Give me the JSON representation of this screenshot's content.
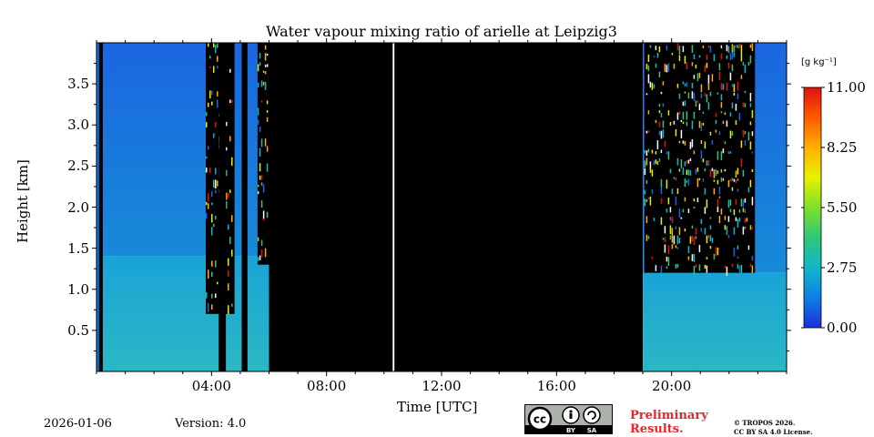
{
  "chart_data": {
    "type": "heatmap",
    "title": "Water vapour mixing ratio of arielle at Leipzig3",
    "xlabel": "Time [UTC]",
    "ylabel": "Height [km]",
    "xlim_hours": [
      0,
      24
    ],
    "ylim_km": [
      0,
      4.0
    ],
    "xticks": [
      {
        "hour": 4,
        "label": "04:00"
      },
      {
        "hour": 8,
        "label": "08:00"
      },
      {
        "hour": 12,
        "label": "12:00"
      },
      {
        "hour": 16,
        "label": "16:00"
      },
      {
        "hour": 20,
        "label": "20:00"
      }
    ],
    "yticks": [
      {
        "value": 0.5,
        "label": "0.5"
      },
      {
        "value": 1.0,
        "label": "1.0"
      },
      {
        "value": 1.5,
        "label": "1.5"
      },
      {
        "value": 2.0,
        "label": "2.0"
      },
      {
        "value": 2.5,
        "label": "2.5"
      },
      {
        "value": 3.0,
        "label": "3.0"
      },
      {
        "value": 3.5,
        "label": "3.5"
      }
    ],
    "colorbar": {
      "unit": "[g kg⁻¹]",
      "min": 0.0,
      "max": 11.0,
      "ticks": [
        {
          "value": 0.0,
          "label": "0.00"
        },
        {
          "value": 2.75,
          "label": "2.75"
        },
        {
          "value": 5.5,
          "label": "5.50"
        },
        {
          "value": 8.25,
          "label": "8.25"
        },
        {
          "value": 11.0,
          "label": "11.00"
        }
      ],
      "colors": [
        "#1a2fd8",
        "#0f7fe6",
        "#10b7c8",
        "#2fc77a",
        "#7fe02a",
        "#e8f000",
        "#ffb000",
        "#ff5a00",
        "#e01010"
      ]
    },
    "segments": [
      {
        "start": 0.0,
        "end": 0.1,
        "kind": "nodata"
      },
      {
        "start": 0.1,
        "end": 6.0,
        "kind": "valid",
        "boundary_layer_top_km": 1.4,
        "lower_value": 2.3,
        "upper_value": 1.0
      },
      {
        "start": 6.0,
        "end": 19.0,
        "kind": "nodata"
      },
      {
        "start": 19.0,
        "end": 24.0,
        "kind": "valid",
        "boundary_layer_top_km": 1.2,
        "lower_value": 2.0,
        "upper_value": 0.9
      }
    ],
    "gaps": [
      {
        "start": 0.1,
        "end": 0.22,
        "kind": "nodata"
      },
      {
        "start": 4.25,
        "end": 4.5,
        "kind": "nodata"
      },
      {
        "start": 5.05,
        "end": 5.25,
        "kind": "nodata"
      },
      {
        "start": 10.3,
        "end": 10.36,
        "kind": "white"
      }
    ],
    "valid_range_upper_noise": [
      {
        "start": 3.8,
        "end": 4.8,
        "above_km": 0.7
      },
      {
        "start": 5.6,
        "end": 6.0,
        "above_km": 1.3
      },
      {
        "start": 19.05,
        "end": 22.9,
        "above_km": 1.2
      }
    ]
  },
  "footer": {
    "date": "2026-01-06",
    "version": "Version: 4.0",
    "preliminary_line1": "Preliminary",
    "preliminary_line2": "Results.",
    "copyright_line1": "© TROPOS 2026.",
    "copyright_line2": "CC BY SA 4.0 License.",
    "cc_by": "BY",
    "cc_sa": "SA",
    "cc_symbol": "cc"
  }
}
